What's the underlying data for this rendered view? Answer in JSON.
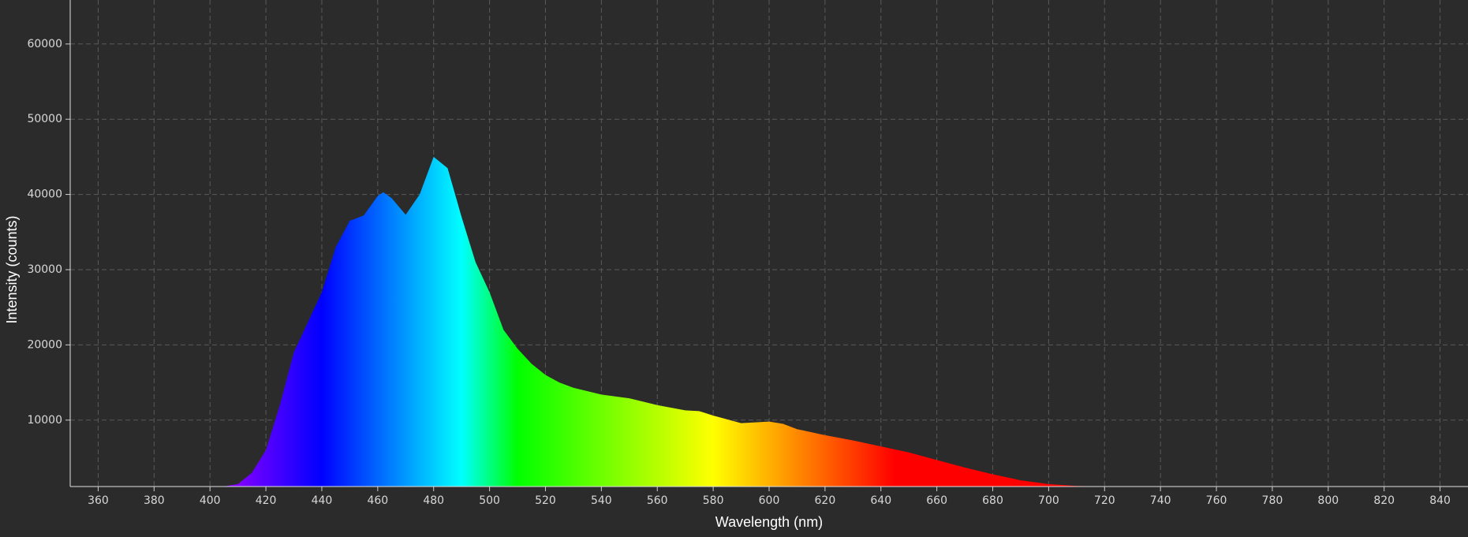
{
  "chart_data": {
    "type": "area",
    "x_label": "Wavelength (nm)",
    "y_label": "Intensity (counts)",
    "x": [
      405,
      410,
      415,
      420,
      425,
      430,
      435,
      440,
      445,
      450,
      455,
      460,
      462,
      465,
      470,
      475,
      480,
      485,
      490,
      495,
      500,
      505,
      510,
      515,
      520,
      525,
      530,
      540,
      550,
      560,
      570,
      575,
      580,
      590,
      600,
      605,
      610,
      620,
      630,
      640,
      650,
      660,
      670,
      680,
      690,
      700,
      710,
      720,
      725
    ],
    "values": [
      1200,
      1500,
      3000,
      6000,
      12000,
      19000,
      23000,
      27000,
      33000,
      36500,
      37200,
      39800,
      40300,
      39500,
      37300,
      40000,
      45000,
      43500,
      37000,
      31000,
      27000,
      22000,
      19500,
      17500,
      16000,
      15000,
      14300,
      13400,
      12900,
      12000,
      11300,
      11200,
      10600,
      9600,
      9800,
      9500,
      8800,
      8000,
      7300,
      6500,
      5700,
      4700,
      3700,
      2800,
      2000,
      1500,
      1250,
      1180,
      1170
    ],
    "xlim": [
      350,
      850
    ],
    "ylim": [
      1170,
      65850
    ],
    "xticks": [
      360,
      380,
      400,
      420,
      440,
      460,
      480,
      500,
      520,
      540,
      560,
      580,
      600,
      620,
      640,
      660,
      680,
      700,
      720,
      740,
      760,
      780,
      800,
      820,
      840
    ],
    "yticks": [
      10000,
      20000,
      30000,
      40000,
      50000,
      60000
    ],
    "grid": true,
    "grid_color": "#5a5a5a",
    "background": "#2b2b2b"
  }
}
